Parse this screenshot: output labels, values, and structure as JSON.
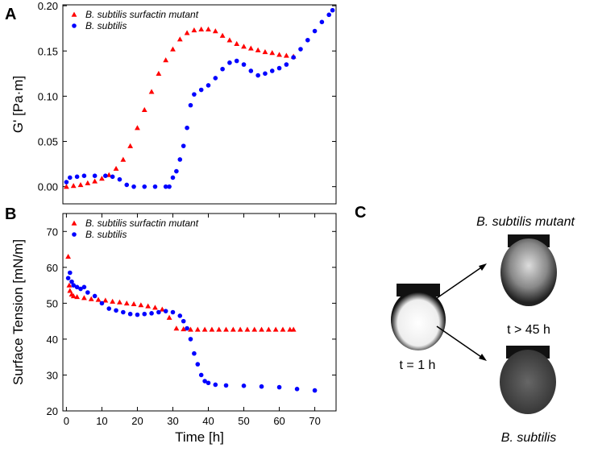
{
  "panel_labels": [
    "A",
    "B",
    "C"
  ],
  "chart_data": [
    {
      "type": "scatter",
      "y_label": "G' [Pa·m]",
      "legend": "upper left",
      "xlim": [
        -1,
        76
      ],
      "ylim": [
        -0.019,
        0.201
      ],
      "yticks": [
        {
          "value": 0,
          "label": "0.00"
        },
        0.05,
        {
          "value": 0.1,
          "label": "0.10"
        },
        0.15,
        {
          "value": 0.2,
          "label": "0.20"
        }
      ],
      "series": [
        {
          "name": "B. subtilis surfactin mutant",
          "color": "#ff0000",
          "marker": "triangle",
          "x": [
            0,
            2,
            4,
            6,
            8,
            10,
            12,
            14,
            16,
            18,
            20,
            22,
            24,
            26,
            28,
            30,
            32,
            34,
            36,
            38,
            40,
            42,
            44,
            46,
            48,
            50,
            52,
            54,
            56,
            58,
            60,
            62,
            64
          ],
          "values": [
            0,
            0.001,
            0.002,
            0.004,
            0.006,
            0.009,
            0.013,
            0.02,
            0.03,
            0.045,
            0.065,
            0.085,
            0.105,
            0.125,
            0.14,
            0.152,
            0.163,
            0.17,
            0.173,
            0.174,
            0.174,
            0.172,
            0.167,
            0.162,
            0.158,
            0.155,
            0.153,
            0.151,
            0.149,
            0.148,
            0.146,
            0.145,
            0.144
          ]
        },
        {
          "name": "B. subtilis",
          "color": "#0000ff",
          "marker": "circle",
          "x": [
            0,
            1,
            3,
            5,
            8,
            11,
            13,
            15,
            17,
            19,
            22,
            25,
            28,
            29,
            30,
            31,
            32,
            33,
            34,
            35,
            36,
            38,
            40,
            42,
            44,
            46,
            48,
            50,
            52,
            54,
            56,
            58,
            60,
            62,
            64,
            66,
            68,
            70,
            72,
            74,
            75
          ],
          "values": [
            0.005,
            0.01,
            0.011,
            0.012,
            0.012,
            0.012,
            0.011,
            0.008,
            0.002,
            0,
            0,
            0,
            0,
            0,
            0.01,
            0.017,
            0.03,
            0.045,
            0.065,
            0.09,
            0.102,
            0.107,
            0.112,
            0.12,
            0.13,
            0.137,
            0.139,
            0.135,
            0.128,
            0.123,
            0.125,
            0.128,
            0.131,
            0.135,
            0.143,
            0.152,
            0.162,
            0.172,
            0.182,
            0.19,
            0.195
          ]
        }
      ]
    },
    {
      "type": "scatter",
      "x_label": "Time [h]",
      "y_label": "Surface Tension [mN/m]",
      "legend": "upper left",
      "xlim": [
        -1,
        76
      ],
      "ylim": [
        20,
        75
      ],
      "xticks": [
        0,
        10,
        20,
        30,
        40,
        50,
        60,
        70
      ],
      "yticks": [
        20,
        30,
        40,
        50,
        60,
        70
      ],
      "series": [
        {
          "name": "B. subtilis surfactin mutant",
          "color": "#ff0000",
          "marker": "triangle",
          "x": [
            0.5,
            0.8,
            1,
            1.5,
            2,
            3,
            5,
            7,
            9,
            11,
            13,
            15,
            17,
            19,
            21,
            23,
            25,
            27,
            29,
            31,
            33,
            35,
            37,
            39,
            41,
            43,
            45,
            47,
            49,
            51,
            53,
            55,
            57,
            59,
            61,
            63,
            64
          ],
          "values": [
            63,
            55,
            53.5,
            52.5,
            52,
            51.8,
            51.5,
            51.2,
            51,
            50.8,
            50.5,
            50.3,
            50,
            49.8,
            49.5,
            49.2,
            48.8,
            48.3,
            46,
            43,
            42.8,
            42.7,
            42.7,
            42.7,
            42.7,
            42.7,
            42.7,
            42.7,
            42.7,
            42.7,
            42.7,
            42.7,
            42.7,
            42.7,
            42.7,
            42.7,
            42.7
          ]
        },
        {
          "name": "B. subtilis",
          "color": "#0000ff",
          "marker": "circle",
          "x": [
            0.5,
            1,
            1.5,
            2,
            3,
            4,
            5,
            6,
            8,
            10,
            12,
            14,
            16,
            18,
            20,
            22,
            24,
            26,
            28,
            30,
            32,
            33,
            34,
            35,
            36,
            37,
            38,
            39,
            40,
            42,
            45,
            50,
            55,
            60,
            65,
            70
          ],
          "values": [
            57,
            58.5,
            56,
            55,
            54.5,
            54,
            54.5,
            53,
            52,
            50,
            48.5,
            48,
            47.5,
            47,
            46.8,
            47,
            47.2,
            47.5,
            47.8,
            47.5,
            46.5,
            45,
            43,
            40,
            36,
            33,
            30,
            28.3,
            27.8,
            27.3,
            27.1,
            27,
            26.8,
            26.6,
            26.1,
            25.7
          ]
        }
      ]
    }
  ],
  "panel_c": {
    "top_label": "B. subtilis mutant",
    "middle_label": "t > 45 h",
    "left_label": "t = 1 h",
    "bottom_label": "B. subtilis"
  }
}
